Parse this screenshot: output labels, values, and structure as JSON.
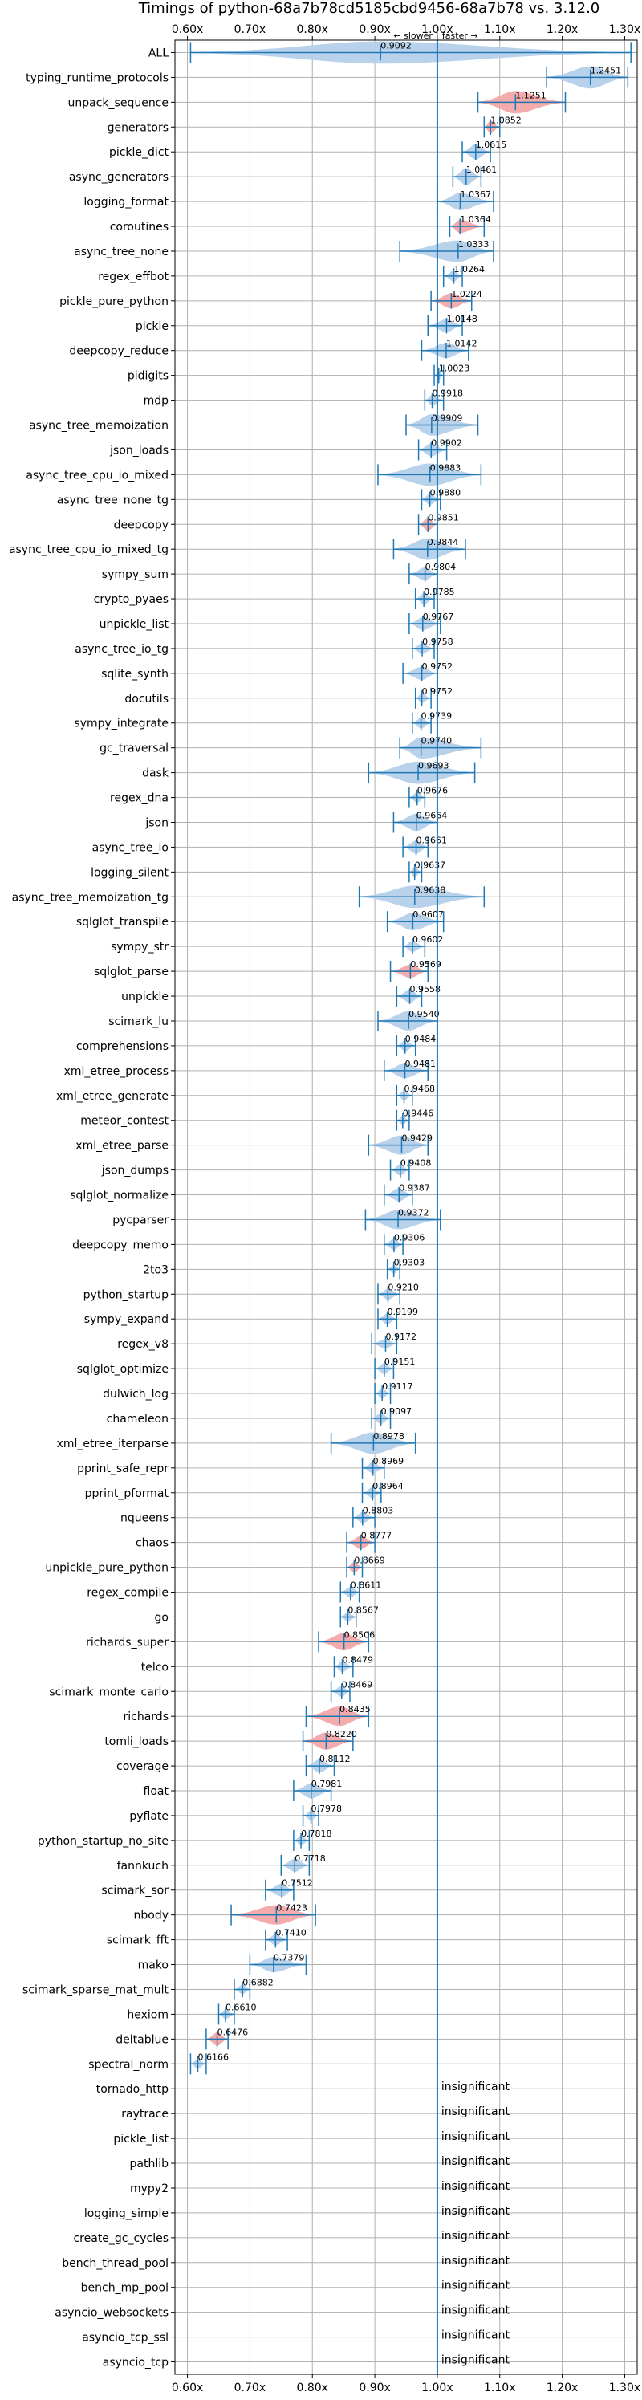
{
  "chart_data": {
    "type": "violin",
    "title": "Timings of python-68a7b78cd5185cbd9456-68a7b78 vs. 3.12.0",
    "xlim": [
      0.58,
      1.32
    ],
    "xticks": [
      0.6,
      0.7,
      0.8,
      0.9,
      1.0,
      1.1,
      1.2,
      1.3
    ],
    "xtick_labels": [
      "0.60x",
      "0.70x",
      "0.80x",
      "0.90x",
      "1.00x",
      "1.10x",
      "1.20x",
      "1.30x"
    ],
    "annot_slower": "← slower",
    "annot_faster": "faster →",
    "insignificant_label": "insignificant",
    "rows": [
      {
        "name": "ALL",
        "median": 0.9092,
        "label": "0.9092",
        "lo": 0.605,
        "hi": 1.31,
        "w": 0.05,
        "c": "blue"
      },
      {
        "name": "typing_runtime_protocols",
        "median": 1.2451,
        "label": "1.2451",
        "lo": 1.175,
        "hi": 1.305,
        "w": 0.05,
        "c": "blue"
      },
      {
        "name": "unpack_sequence",
        "median": 1.1251,
        "label": "1.1251",
        "lo": 1.065,
        "hi": 1.205,
        "w": 0.05,
        "c": "red"
      },
      {
        "name": "generators",
        "median": 1.0852,
        "label": "1.0852",
        "lo": 1.075,
        "hi": 1.1,
        "w": 0.02,
        "c": "red"
      },
      {
        "name": "pickle_dict",
        "median": 1.0615,
        "label": "1.0615",
        "lo": 1.04,
        "hi": 1.085,
        "w": 0.025,
        "c": "blue"
      },
      {
        "name": "async_generators",
        "median": 1.0461,
        "label": "1.0461",
        "lo": 1.025,
        "hi": 1.07,
        "w": 0.03,
        "c": "blue"
      },
      {
        "name": "logging_format",
        "median": 1.0367,
        "label": "1.0367",
        "lo": 1.0,
        "hi": 1.09,
        "w": 0.03,
        "c": "blue"
      },
      {
        "name": "coroutines",
        "median": 1.0364,
        "label": "1.0364",
        "lo": 1.02,
        "hi": 1.075,
        "w": 0.02,
        "c": "red"
      },
      {
        "name": "async_tree_none",
        "median": 1.0333,
        "label": "1.0333",
        "lo": 0.94,
        "hi": 1.09,
        "w": 0.04,
        "c": "blue"
      },
      {
        "name": "regex_effbot",
        "median": 1.0264,
        "label": "1.0264",
        "lo": 1.01,
        "hi": 1.04,
        "w": 0.015,
        "c": "blue"
      },
      {
        "name": "pickle_pure_python",
        "median": 1.0224,
        "label": "1.0224",
        "lo": 0.99,
        "hi": 1.055,
        "w": 0.025,
        "c": "red"
      },
      {
        "name": "pickle",
        "median": 1.0148,
        "label": "1.0148",
        "lo": 0.985,
        "hi": 1.04,
        "w": 0.02,
        "c": "blue"
      },
      {
        "name": "deepcopy_reduce",
        "median": 1.0142,
        "label": "1.0142",
        "lo": 0.975,
        "hi": 1.05,
        "w": 0.025,
        "c": "blue"
      },
      {
        "name": "pidigits",
        "median": 1.0023,
        "label": "1.0023",
        "lo": 0.995,
        "hi": 1.01,
        "w": 0.01,
        "c": "blue"
      },
      {
        "name": "mdp",
        "median": 0.9918,
        "label": "0.9918",
        "lo": 0.98,
        "hi": 1.01,
        "w": 0.015,
        "c": "blue"
      },
      {
        "name": "async_tree_memoization",
        "median": 0.9909,
        "label": "0.9909",
        "lo": 0.95,
        "hi": 1.065,
        "w": 0.04,
        "c": "blue"
      },
      {
        "name": "json_loads",
        "median": 0.9902,
        "label": "0.9902",
        "lo": 0.97,
        "hi": 1.015,
        "w": 0.02,
        "c": "blue"
      },
      {
        "name": "async_tree_cpu_io_mixed",
        "median": 0.9883,
        "label": "0.9883",
        "lo": 0.905,
        "hi": 1.07,
        "w": 0.045,
        "c": "blue"
      },
      {
        "name": "async_tree_none_tg",
        "median": 0.988,
        "label": "0.9880",
        "lo": 0.975,
        "hi": 1.005,
        "w": 0.015,
        "c": "blue"
      },
      {
        "name": "deepcopy",
        "median": 0.9851,
        "label": "0.9851",
        "lo": 0.97,
        "hi": 1.0,
        "w": 0.02,
        "c": "red"
      },
      {
        "name": "async_tree_cpu_io_mixed_tg",
        "median": 0.9844,
        "label": "0.9844",
        "lo": 0.93,
        "hi": 1.045,
        "w": 0.04,
        "c": "blue"
      },
      {
        "name": "sympy_sum",
        "median": 0.9804,
        "label": "0.9804",
        "lo": 0.955,
        "hi": 1.0,
        "w": 0.02,
        "c": "blue"
      },
      {
        "name": "crypto_pyaes",
        "median": 0.9785,
        "label": "0.9785",
        "lo": 0.965,
        "hi": 0.995,
        "w": 0.015,
        "c": "blue"
      },
      {
        "name": "unpickle_list",
        "median": 0.9767,
        "label": "0.9767",
        "lo": 0.955,
        "hi": 1.005,
        "w": 0.02,
        "c": "blue"
      },
      {
        "name": "async_tree_io_tg",
        "median": 0.9758,
        "label": "0.9758",
        "lo": 0.96,
        "hi": 0.995,
        "w": 0.015,
        "c": "blue"
      },
      {
        "name": "sqlite_synth",
        "median": 0.9752,
        "label": "0.9752",
        "lo": 0.945,
        "hi": 1.0,
        "w": 0.02,
        "c": "blue"
      },
      {
        "name": "docutils",
        "median": 0.9752,
        "label": "0.9752",
        "lo": 0.965,
        "hi": 0.99,
        "w": 0.012,
        "c": "blue"
      },
      {
        "name": "sympy_integrate",
        "median": 0.9739,
        "label": "0.9739",
        "lo": 0.96,
        "hi": 0.99,
        "w": 0.015,
        "c": "blue"
      },
      {
        "name": "gc_traversal",
        "median": 0.974,
        "label": "0.9740",
        "lo": 0.94,
        "hi": 1.07,
        "w": 0.04,
        "c": "blue"
      },
      {
        "name": "dask",
        "median": 0.9693,
        "label": "0.9693",
        "lo": 0.89,
        "hi": 1.06,
        "w": 0.045,
        "c": "blue"
      },
      {
        "name": "regex_dna",
        "median": 0.9676,
        "label": "0.9676",
        "lo": 0.955,
        "hi": 0.98,
        "w": 0.015,
        "c": "blue"
      },
      {
        "name": "json",
        "median": 0.9664,
        "label": "0.9664",
        "lo": 0.93,
        "hi": 1.0,
        "w": 0.03,
        "c": "blue"
      },
      {
        "name": "async_tree_io",
        "median": 0.9661,
        "label": "0.9661",
        "lo": 0.945,
        "hi": 0.985,
        "w": 0.02,
        "c": "blue"
      },
      {
        "name": "logging_silent",
        "median": 0.9637,
        "label": "0.9637",
        "lo": 0.955,
        "hi": 0.975,
        "w": 0.012,
        "c": "blue"
      },
      {
        "name": "async_tree_memoization_tg",
        "median": 0.9638,
        "label": "0.9638",
        "lo": 0.875,
        "hi": 1.075,
        "w": 0.045,
        "c": "blue"
      },
      {
        "name": "sqlglot_transpile",
        "median": 0.9607,
        "label": "0.9607",
        "lo": 0.92,
        "hi": 1.01,
        "w": 0.03,
        "c": "blue"
      },
      {
        "name": "sympy_str",
        "median": 0.9602,
        "label": "0.9602",
        "lo": 0.945,
        "hi": 0.98,
        "w": 0.015,
        "c": "blue"
      },
      {
        "name": "sqlglot_parse",
        "median": 0.9569,
        "label": "0.9569",
        "lo": 0.925,
        "hi": 0.985,
        "w": 0.02,
        "c": "red"
      },
      {
        "name": "unpickle",
        "median": 0.9558,
        "label": "0.9558",
        "lo": 0.935,
        "hi": 0.975,
        "w": 0.02,
        "c": "blue"
      },
      {
        "name": "scimark_lu",
        "median": 0.954,
        "label": "0.9540",
        "lo": 0.905,
        "hi": 1.0,
        "w": 0.035,
        "c": "blue"
      },
      {
        "name": "comprehensions",
        "median": 0.9484,
        "label": "0.9484",
        "lo": 0.935,
        "hi": 0.965,
        "w": 0.015,
        "c": "blue"
      },
      {
        "name": "xml_etree_process",
        "median": 0.9481,
        "label": "0.9481",
        "lo": 0.915,
        "hi": 0.985,
        "w": 0.025,
        "c": "blue"
      },
      {
        "name": "xml_etree_generate",
        "median": 0.9468,
        "label": "0.9468",
        "lo": 0.935,
        "hi": 0.96,
        "w": 0.012,
        "c": "blue"
      },
      {
        "name": "meteor_contest",
        "median": 0.9446,
        "label": "0.9446",
        "lo": 0.935,
        "hi": 0.955,
        "w": 0.01,
        "c": "blue"
      },
      {
        "name": "xml_etree_parse",
        "median": 0.9429,
        "label": "0.9429",
        "lo": 0.89,
        "hi": 0.985,
        "w": 0.035,
        "c": "blue"
      },
      {
        "name": "json_dumps",
        "median": 0.9408,
        "label": "0.9408",
        "lo": 0.925,
        "hi": 0.955,
        "w": 0.015,
        "c": "blue"
      },
      {
        "name": "sqlglot_normalize",
        "median": 0.9387,
        "label": "0.9387",
        "lo": 0.915,
        "hi": 0.96,
        "w": 0.02,
        "c": "blue"
      },
      {
        "name": "pycparser",
        "median": 0.9372,
        "label": "0.9372",
        "lo": 0.885,
        "hi": 1.005,
        "w": 0.035,
        "c": "blue"
      },
      {
        "name": "deepcopy_memo",
        "median": 0.9306,
        "label": "0.9306",
        "lo": 0.915,
        "hi": 0.945,
        "w": 0.015,
        "c": "blue"
      },
      {
        "name": "2to3",
        "median": 0.9303,
        "label": "0.9303",
        "lo": 0.92,
        "hi": 0.94,
        "w": 0.01,
        "c": "blue"
      },
      {
        "name": "python_startup",
        "median": 0.921,
        "label": "0.9210",
        "lo": 0.905,
        "hi": 0.94,
        "w": 0.015,
        "c": "blue"
      },
      {
        "name": "sympy_expand",
        "median": 0.9199,
        "label": "0.9199",
        "lo": 0.905,
        "hi": 0.935,
        "w": 0.015,
        "c": "blue"
      },
      {
        "name": "regex_v8",
        "median": 0.9172,
        "label": "0.9172",
        "lo": 0.895,
        "hi": 0.935,
        "w": 0.012,
        "c": "blue"
      },
      {
        "name": "sqlglot_optimize",
        "median": 0.9151,
        "label": "0.9151",
        "lo": 0.9,
        "hi": 0.93,
        "w": 0.015,
        "c": "blue"
      },
      {
        "name": "dulwich_log",
        "median": 0.9117,
        "label": "0.9117",
        "lo": 0.9,
        "hi": 0.925,
        "w": 0.012,
        "c": "blue"
      },
      {
        "name": "chameleon",
        "median": 0.9097,
        "label": "0.9097",
        "lo": 0.895,
        "hi": 0.925,
        "w": 0.015,
        "c": "blue"
      },
      {
        "name": "xml_etree_iterparse",
        "median": 0.8978,
        "label": "0.8978",
        "lo": 0.83,
        "hi": 0.965,
        "w": 0.04,
        "c": "blue"
      },
      {
        "name": "pprint_safe_repr",
        "median": 0.8969,
        "label": "0.8969",
        "lo": 0.88,
        "hi": 0.915,
        "w": 0.015,
        "c": "blue"
      },
      {
        "name": "pprint_pformat",
        "median": 0.8964,
        "label": "0.8964",
        "lo": 0.88,
        "hi": 0.91,
        "w": 0.015,
        "c": "blue"
      },
      {
        "name": "nqueens",
        "median": 0.8803,
        "label": "0.8803",
        "lo": 0.865,
        "hi": 0.9,
        "w": 0.015,
        "c": "blue"
      },
      {
        "name": "chaos",
        "median": 0.8777,
        "label": "0.8777",
        "lo": 0.855,
        "hi": 0.9,
        "w": 0.02,
        "c": "red"
      },
      {
        "name": "unpickle_pure_python",
        "median": 0.8669,
        "label": "0.8669",
        "lo": 0.855,
        "hi": 0.88,
        "w": 0.015,
        "c": "red"
      },
      {
        "name": "regex_compile",
        "median": 0.8611,
        "label": "0.8611",
        "lo": 0.845,
        "hi": 0.875,
        "w": 0.015,
        "c": "blue"
      },
      {
        "name": "go",
        "median": 0.8567,
        "label": "0.8567",
        "lo": 0.845,
        "hi": 0.87,
        "w": 0.012,
        "c": "blue"
      },
      {
        "name": "richards_super",
        "median": 0.8506,
        "label": "0.8506",
        "lo": 0.81,
        "hi": 0.89,
        "w": 0.03,
        "c": "red"
      },
      {
        "name": "telco",
        "median": 0.8479,
        "label": "0.8479",
        "lo": 0.835,
        "hi": 0.865,
        "w": 0.015,
        "c": "blue"
      },
      {
        "name": "scimark_monte_carlo",
        "median": 0.8469,
        "label": "0.8469",
        "lo": 0.83,
        "hi": 0.86,
        "w": 0.015,
        "c": "blue"
      },
      {
        "name": "richards",
        "median": 0.8435,
        "label": "0.8435",
        "lo": 0.79,
        "hi": 0.89,
        "w": 0.035,
        "c": "red"
      },
      {
        "name": "tomli_loads",
        "median": 0.822,
        "label": "0.8220",
        "lo": 0.785,
        "hi": 0.865,
        "w": 0.03,
        "c": "red"
      },
      {
        "name": "coverage",
        "median": 0.8112,
        "label": "0.8112",
        "lo": 0.79,
        "hi": 0.835,
        "w": 0.02,
        "c": "blue"
      },
      {
        "name": "float",
        "median": 0.7981,
        "label": "0.7981",
        "lo": 0.77,
        "hi": 0.83,
        "w": 0.025,
        "c": "blue"
      },
      {
        "name": "pyflate",
        "median": 0.7978,
        "label": "0.7978",
        "lo": 0.785,
        "hi": 0.81,
        "w": 0.012,
        "c": "blue"
      },
      {
        "name": "python_startup_no_site",
        "median": 0.7818,
        "label": "0.7818",
        "lo": 0.77,
        "hi": 0.795,
        "w": 0.012,
        "c": "blue"
      },
      {
        "name": "fannkuch",
        "median": 0.7718,
        "label": "0.7718",
        "lo": 0.75,
        "hi": 0.795,
        "w": 0.02,
        "c": "blue"
      },
      {
        "name": "scimark_sor",
        "median": 0.7512,
        "label": "0.7512",
        "lo": 0.725,
        "hi": 0.77,
        "w": 0.02,
        "c": "blue"
      },
      {
        "name": "nbody",
        "median": 0.7423,
        "label": "0.7423",
        "lo": 0.67,
        "hi": 0.805,
        "w": 0.035,
        "c": "red"
      },
      {
        "name": "scimark_fft",
        "median": 0.741,
        "label": "0.7410",
        "lo": 0.725,
        "hi": 0.76,
        "w": 0.015,
        "c": "blue"
      },
      {
        "name": "mako",
        "median": 0.7379,
        "label": "0.7379",
        "lo": 0.7,
        "hi": 0.79,
        "w": 0.025,
        "c": "blue"
      },
      {
        "name": "scimark_sparse_mat_mult",
        "median": 0.6882,
        "label": "0.6882",
        "lo": 0.675,
        "hi": 0.7,
        "w": 0.012,
        "c": "blue"
      },
      {
        "name": "hexiom",
        "median": 0.661,
        "label": "0.6610",
        "lo": 0.65,
        "hi": 0.675,
        "w": 0.012,
        "c": "blue"
      },
      {
        "name": "deltablue",
        "median": 0.6476,
        "label": "0.6476",
        "lo": 0.63,
        "hi": 0.665,
        "w": 0.02,
        "c": "red"
      },
      {
        "name": "spectral_norm",
        "median": 0.6166,
        "label": "0.6166",
        "lo": 0.605,
        "hi": 0.63,
        "w": 0.012,
        "c": "blue"
      },
      {
        "name": "tornado_http",
        "insignificant": true
      },
      {
        "name": "raytrace",
        "insignificant": true
      },
      {
        "name": "pickle_list",
        "insignificant": true
      },
      {
        "name": "pathlib",
        "insignificant": true
      },
      {
        "name": "mypy2",
        "insignificant": true
      },
      {
        "name": "logging_simple",
        "insignificant": true
      },
      {
        "name": "create_gc_cycles",
        "insignificant": true
      },
      {
        "name": "bench_thread_pool",
        "insignificant": true
      },
      {
        "name": "bench_mp_pool",
        "insignificant": true
      },
      {
        "name": "asyncio_websockets",
        "insignificant": true
      },
      {
        "name": "asyncio_tcp_ssl",
        "insignificant": true
      },
      {
        "name": "asyncio_tcp",
        "insignificant": true
      }
    ]
  },
  "colors": {
    "blue_fill": "#b5d0ea",
    "red_fill": "#f2a7a7",
    "line": "#1f77b4",
    "grid": "#b0b0b0"
  }
}
